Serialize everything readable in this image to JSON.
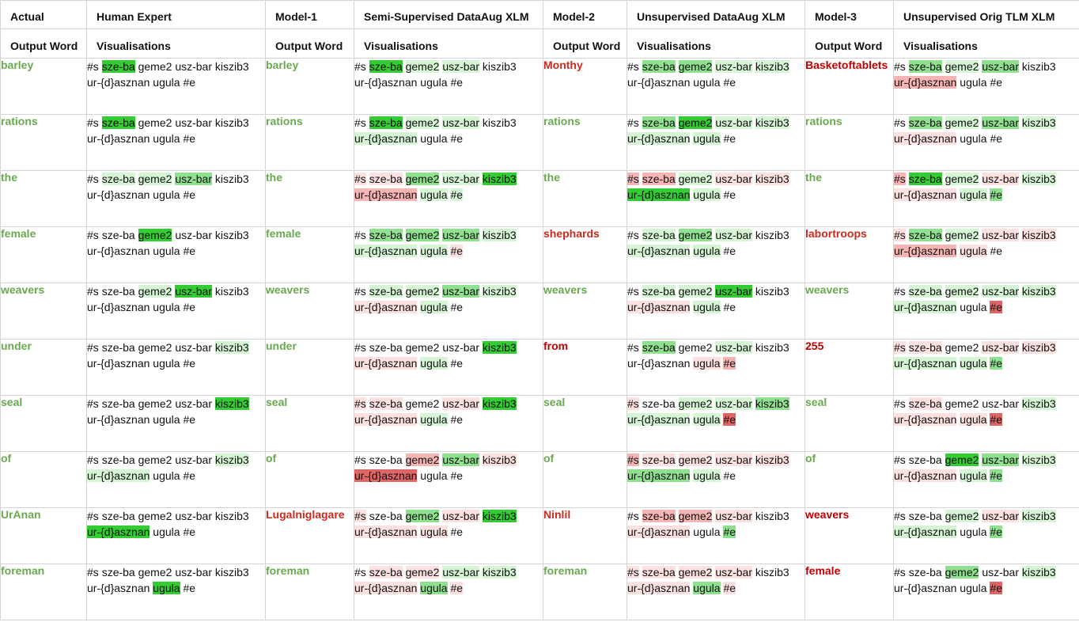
{
  "headers": [
    "Actual",
    "Human Expert",
    "Model-1",
    "Semi-Supervised DataAug XLM",
    "Model-2",
    "Unsupervised DataAug XLM",
    "Model-3",
    "Unsupervised Orig TLM XLM"
  ],
  "subheaders": [
    "Output Word",
    "Visualisations",
    "Output Word",
    "Visualisations",
    "Output Word",
    "Visualisations",
    "Output Word",
    "Visualisations"
  ],
  "tokens": [
    "#s ",
    "sze-ba",
    " geme2",
    " usz-bar",
    " kiszib3",
    "ur-{d}asznan",
    " ugula",
    " #e"
  ],
  "palette": {
    "G3": "#33cc33",
    "G2": "#8fe08f",
    "G1": "#d5f5d5",
    "R1": "#fde0e0",
    "R2": "#f5b5b5",
    "R3": "#e06666",
    "0": "transparent"
  },
  "word_colors": {
    "g": "#6aa84f",
    "r": "#cc2a1e",
    "dr": "#c00000"
  },
  "rows": [
    {
      "actual": "barley",
      "human": [
        "0",
        "G3",
        "0",
        "0",
        "0",
        "0",
        "0",
        "0"
      ],
      "m1": {
        "word": "barley",
        "c": "g",
        "h": [
          "0",
          "G3",
          "G1",
          "G1",
          "0",
          "0",
          "0",
          "0"
        ]
      },
      "m2": {
        "word": "Monthy",
        "c": "r",
        "h": [
          "0",
          "G2",
          "G2",
          "G1",
          "G1",
          "0",
          "0",
          "0"
        ]
      },
      "m3": {
        "word": "Basketoftablets",
        "c": "dr",
        "h": [
          "0",
          "G2",
          "G1",
          "G2",
          "0",
          "R2",
          "0",
          "0"
        ]
      }
    },
    {
      "actual": "rations",
      "human": [
        "0",
        "G3",
        "0",
        "0",
        "0",
        "0",
        "0",
        "0"
      ],
      "m1": {
        "word": "rations",
        "c": "g",
        "h": [
          "0",
          "G3",
          "G1",
          "G1",
          "0",
          "G1",
          "0",
          "0"
        ]
      },
      "m2": {
        "word": "rations",
        "c": "g",
        "h": [
          "0",
          "G2",
          "G3",
          "G1",
          "G1",
          "G1",
          "G1",
          "0"
        ]
      },
      "m3": {
        "word": "rations",
        "c": "g",
        "h": [
          "0",
          "G2",
          "G1",
          "G2",
          "G1",
          "R1",
          "0",
          "0"
        ]
      }
    },
    {
      "actual": "the",
      "human": [
        "0",
        "G1",
        "G1",
        "G2",
        "0",
        "0",
        "0",
        "0"
      ],
      "m1": {
        "word": "the",
        "c": "g",
        "h": [
          "R1",
          "R1",
          "G2",
          "G1",
          "G3",
          "R2",
          "G1",
          "G1"
        ]
      },
      "m2": {
        "word": "the",
        "c": "g",
        "h": [
          "R2",
          "R2",
          "G1",
          "R1",
          "R1",
          "G3",
          "G1",
          "0"
        ]
      },
      "m3": {
        "word": "the",
        "c": "g",
        "h": [
          "R2",
          "G3",
          "G1",
          "R1",
          "G1",
          "R1",
          "G1",
          "G2"
        ]
      }
    },
    {
      "actual": "female",
      "human": [
        "0",
        "0",
        "G3",
        "0",
        "0",
        "0",
        "0",
        "0"
      ],
      "m1": {
        "word": "female",
        "c": "g",
        "h": [
          "0",
          "G2",
          "G2",
          "G2",
          "G1",
          "G1",
          "G1",
          "R1"
        ]
      },
      "m2": {
        "word": "shephards",
        "c": "r",
        "h": [
          "0",
          "G1",
          "G2",
          "G1",
          "0",
          "G1",
          "G1",
          "0"
        ]
      },
      "m3": {
        "word": "labortroops",
        "c": "r",
        "h": [
          "R1",
          "G2",
          "G1",
          "R1",
          "R1",
          "R2",
          "R1",
          "0"
        ]
      }
    },
    {
      "actual": "weavers",
      "human": [
        "0",
        "0",
        "G1",
        "G3",
        "0",
        "0",
        "0",
        "0"
      ],
      "m1": {
        "word": "weavers",
        "c": "g",
        "h": [
          "0",
          "G1",
          "G1",
          "G2",
          "G1",
          "R1",
          "G1",
          "0"
        ]
      },
      "m2": {
        "word": "weavers",
        "c": "g",
        "h": [
          "0",
          "G1",
          "G1",
          "G3",
          "0",
          "R1",
          "G1",
          "0"
        ]
      },
      "m3": {
        "word": "weavers",
        "c": "g",
        "h": [
          "0",
          "G1",
          "G1",
          "G1",
          "G1",
          "G1",
          "0",
          "R3"
        ]
      }
    },
    {
      "actual": "under",
      "human": [
        "0",
        "0",
        "0",
        "0",
        "G1",
        "0",
        "0",
        "0"
      ],
      "m1": {
        "word": "under",
        "c": "g",
        "h": [
          "0",
          "0",
          "0",
          "0",
          "G3",
          "R1",
          "G1",
          "0"
        ]
      },
      "m2": {
        "word": "from",
        "c": "dr",
        "h": [
          "0",
          "G2",
          "0",
          "G1",
          "0",
          "0",
          "R1",
          "R2"
        ]
      },
      "m3": {
        "word": "255",
        "c": "dr",
        "h": [
          "R1",
          "R1",
          "0",
          "R1",
          "R1",
          "G1",
          "G1",
          "G2"
        ]
      }
    },
    {
      "actual": "seal",
      "human": [
        "0",
        "0",
        "0",
        "0",
        "G3",
        "0",
        "0",
        "0"
      ],
      "m1": {
        "word": "seal",
        "c": "g",
        "h": [
          "R1",
          "R1",
          "0",
          "R1",
          "G3",
          "R1",
          "G1",
          "0"
        ]
      },
      "m2": {
        "word": "seal",
        "c": "g",
        "h": [
          "R1",
          "0",
          "G1",
          "G1",
          "G2",
          "G1",
          "G1",
          "R3"
        ]
      },
      "m3": {
        "word": "seal",
        "c": "g",
        "h": [
          "0",
          "R1",
          "0",
          "0",
          "G1",
          "R1",
          "R1",
          "R3"
        ]
      }
    },
    {
      "actual": "of",
      "human": [
        "0",
        "0",
        "0",
        "0",
        "G1",
        "G1",
        "0",
        "0"
      ],
      "m1": {
        "word": "of",
        "c": "g",
        "h": [
          "0",
          "0",
          "R2",
          "G2",
          "R1",
          "R3",
          "0",
          "0"
        ]
      },
      "m2": {
        "word": "of",
        "c": "g",
        "h": [
          "R2",
          "R1",
          "R1",
          "R1",
          "R1",
          "G2",
          "G1",
          "0"
        ]
      },
      "m3": {
        "word": "of",
        "c": "g",
        "h": [
          "0",
          "0",
          "G3",
          "G2",
          "G1",
          "R1",
          "G1",
          "G2"
        ]
      }
    },
    {
      "actual": "UrAnan",
      "human": [
        "0",
        "0",
        "0",
        "0",
        "0",
        "G3",
        "0",
        "0"
      ],
      "m1": {
        "word": "Lugalniglagare",
        "c": "r",
        "h": [
          "R1",
          "0",
          "G2",
          "R1",
          "G3",
          "R1",
          "R1",
          "0"
        ]
      },
      "m2": {
        "word": "Ninlil",
        "c": "r",
        "h": [
          "0",
          "R2",
          "R2",
          "R1",
          "0",
          "R1",
          "0",
          "G2"
        ]
      },
      "m3": {
        "word": "weavers",
        "c": "dr",
        "h": [
          "0",
          "0",
          "G1",
          "R1",
          "G1",
          "G1",
          "0",
          "G2"
        ]
      }
    },
    {
      "actual": "foreman",
      "human": [
        "0",
        "0",
        "0",
        "0",
        "0",
        "0",
        "G3",
        "0"
      ],
      "m1": {
        "word": "foreman",
        "c": "g",
        "h": [
          "0",
          "R1",
          "R1",
          "G1",
          "G1",
          "R1",
          "G2",
          "R1"
        ]
      },
      "m2": {
        "word": "foreman",
        "c": "g",
        "h": [
          "R1",
          "R1",
          "R1",
          "R1",
          "0",
          "R1",
          "G2",
          "R1"
        ]
      },
      "m3": {
        "word": "female",
        "c": "dr",
        "h": [
          "0",
          "0",
          "G2",
          "0",
          "G1",
          "0",
          "0",
          "R3"
        ]
      }
    }
  ]
}
